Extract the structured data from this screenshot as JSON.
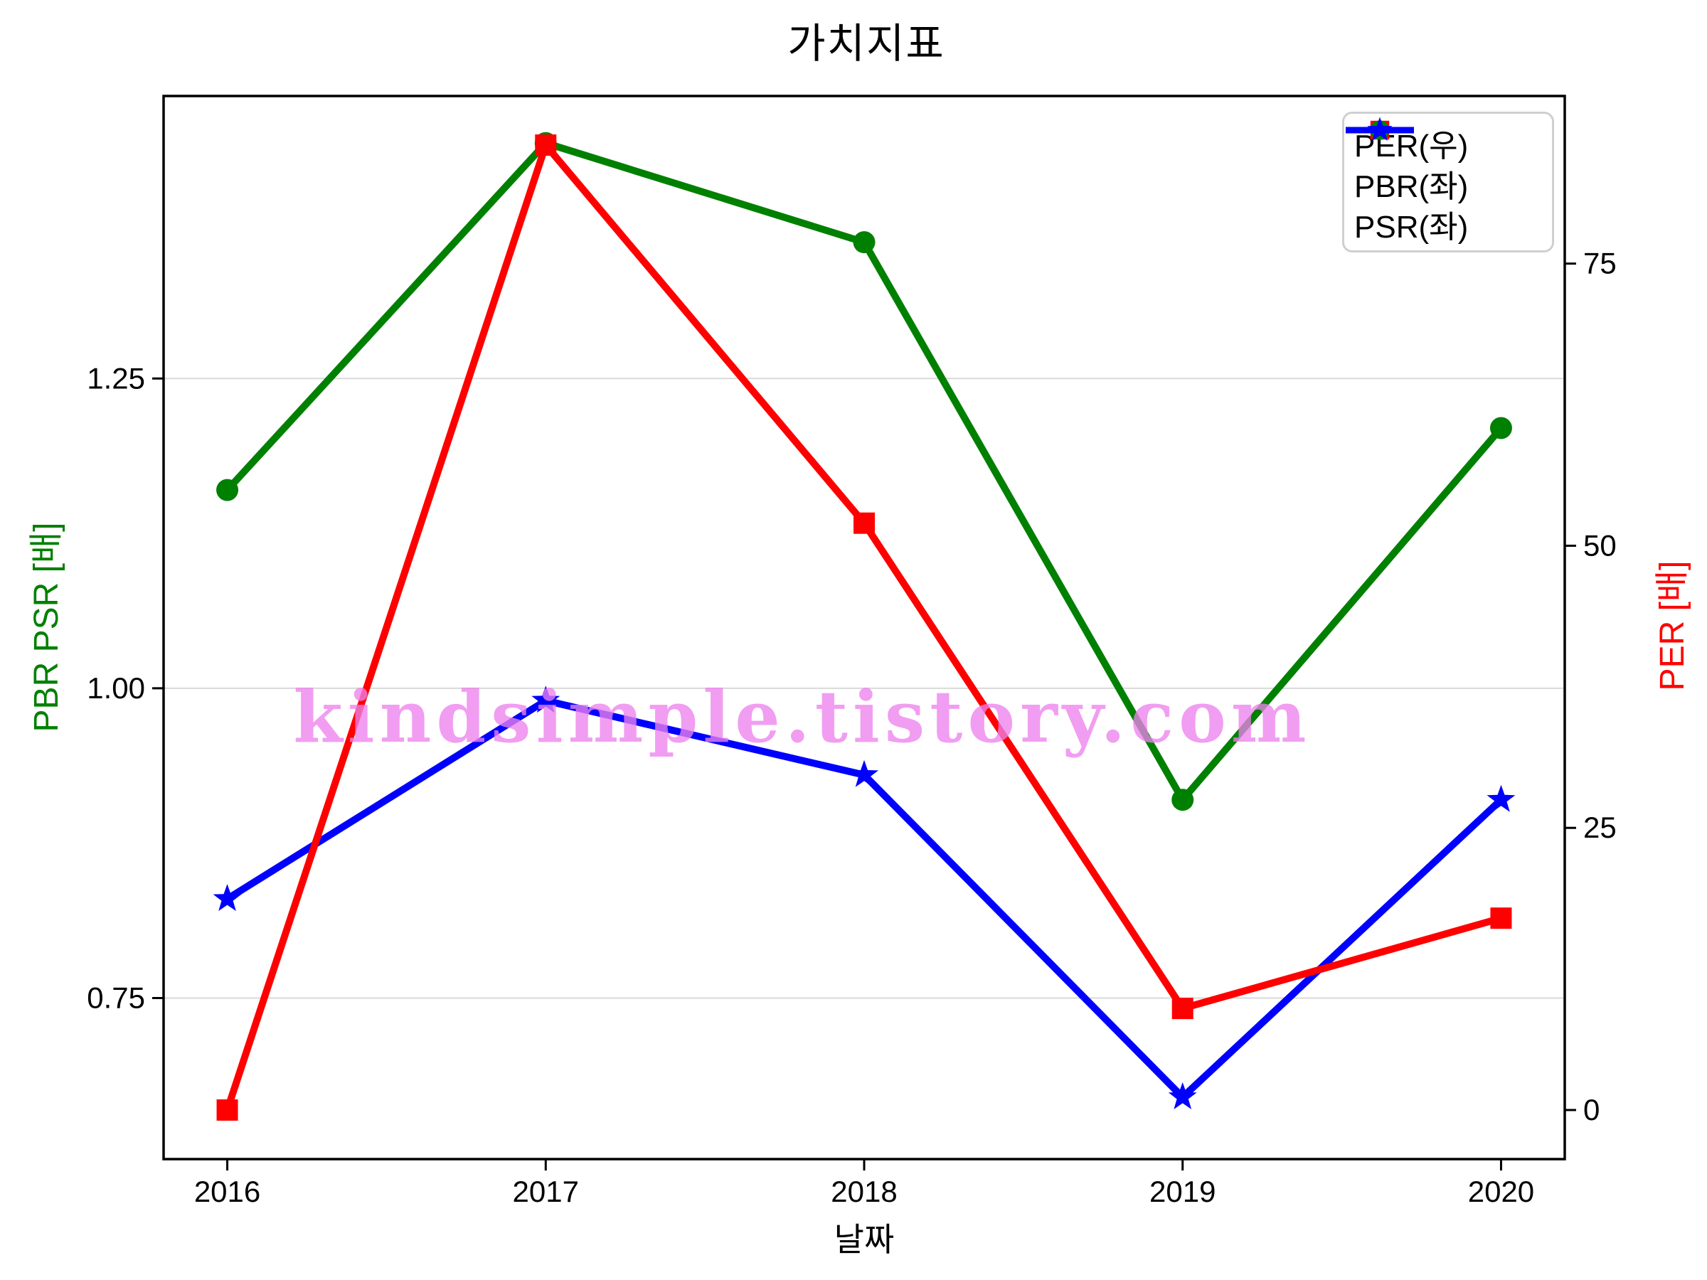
{
  "title": "가치지표",
  "watermark": "kindsimple.tistory.com",
  "colors": {
    "per_series": "#ff0000",
    "pbr_series": "#008000",
    "psr_series": "#0000ff",
    "grid": "#d9d9d9",
    "spine": "#000000",
    "watermark": "#ee82ee",
    "legend_border": "#cfcfcf"
  },
  "legend": {
    "entries": [
      {
        "label": "PER(우)"
      },
      {
        "label": "PBR(좌)"
      },
      {
        "label": "PSR(좌)"
      }
    ]
  },
  "chart_data": {
    "type": "line",
    "title": "가치지표",
    "xlabel": "날짜",
    "ylabel_left": "PBR PSR [배]",
    "ylabel_right": "PER [배]",
    "x": [
      2016,
      2017,
      2018,
      2019,
      2020
    ],
    "x_tick_labels": [
      "2016",
      "2017",
      "2018",
      "2019",
      "2020"
    ],
    "series": [
      {
        "name": "PER(우)",
        "axis": "right",
        "color": "#ff0000",
        "marker": "square",
        "values": [
          0,
          85.5,
          52,
          9,
          17
        ]
      },
      {
        "name": "PBR(좌)",
        "axis": "left",
        "color": "#008000",
        "marker": "circle",
        "values": [
          1.16,
          1.44,
          1.36,
          0.91,
          1.21
        ]
      },
      {
        "name": "PSR(좌)",
        "axis": "left",
        "color": "#0000ff",
        "marker": "star",
        "values": [
          0.83,
          0.99,
          0.93,
          0.67,
          0.91
        ]
      }
    ],
    "left_axis": {
      "label": "PBR PSR [배]",
      "ticks": [
        "0.75",
        "1.00",
        "1.25"
      ],
      "range": [
        0.62,
        1.478
      ]
    },
    "right_axis": {
      "label": "PER [배]",
      "ticks": [
        "0",
        "25",
        "50",
        "75"
      ],
      "range": [
        -4.35,
        89.85
      ]
    },
    "x_range": [
      2015.8,
      2020.2
    ],
    "grid": "horizontal-left-axis-ticks",
    "legend_position": "upper-right"
  }
}
